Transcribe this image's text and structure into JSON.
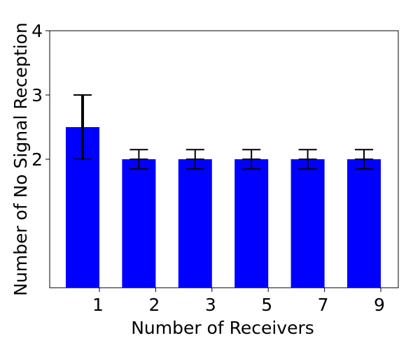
{
  "chart_data": {
    "type": "bar",
    "categories": [
      "1",
      "2",
      "3",
      "5",
      "7",
      "9"
    ],
    "values": [
      2.5,
      2.0,
      2.0,
      2.0,
      2.0,
      2.0
    ],
    "error_low": [
      2.0,
      1.85,
      1.85,
      1.85,
      1.85,
      1.85
    ],
    "error_high": [
      3.0,
      2.15,
      2.15,
      2.15,
      2.15,
      2.15
    ],
    "xlabel": "Number of Receivers",
    "ylabel": "Number of No Signal Reception",
    "ylim": [
      0,
      4
    ],
    "yticks": [
      "2",
      "3",
      "4"
    ],
    "bar_color": "#0000ff",
    "grid": false,
    "legend": "none"
  }
}
